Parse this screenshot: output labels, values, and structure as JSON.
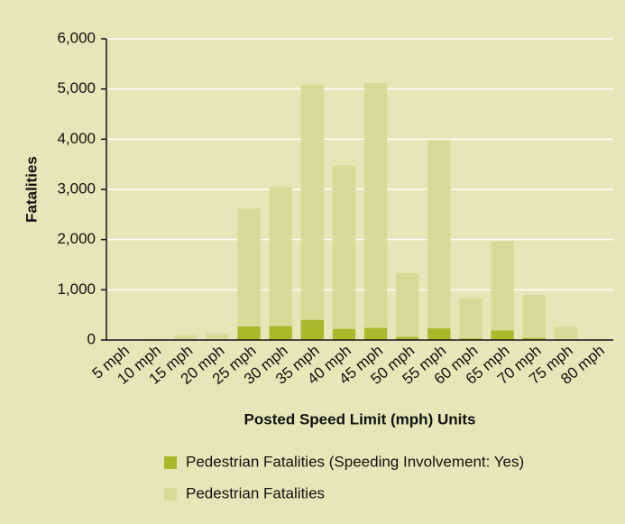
{
  "chart_data": {
    "type": "bar",
    "x_label": "Posted Speed Limit (mph) Units",
    "y_label": "Fatalities",
    "categories": [
      "5 mph",
      "10 mph",
      "15 mph",
      "20 mph",
      "25 mph",
      "30 mph",
      "35 mph",
      "40 mph",
      "45 mph",
      "50 mph",
      "55 mph",
      "60 mph",
      "65 mph",
      "70 mph",
      "75 mph",
      "80 mph"
    ],
    "series": [
      {
        "name": "Pedestrian Fatalities",
        "color": "#d5dc98",
        "values": [
          0,
          20,
          100,
          130,
          2620,
          3050,
          5080,
          3480,
          5120,
          1330,
          3980,
          830,
          1970,
          900,
          260,
          20
        ]
      },
      {
        "name": "Pedestrian Fatalities (Speeding Involvement: Yes)",
        "color": "#a8b92a",
        "values": [
          0,
          0,
          5,
          10,
          270,
          280,
          400,
          220,
          240,
          60,
          230,
          30,
          190,
          40,
          10,
          0
        ]
      }
    ],
    "ylim": [
      0,
      6000
    ],
    "yticks": [
      0,
      {
        "value": 1000,
        "label": "1,000"
      },
      {
        "value": 2000,
        "label": "2,000"
      },
      {
        "value": 3000,
        "label": "3,000"
      },
      {
        "value": 4000,
        "label": "4,000"
      },
      {
        "value": 5000,
        "label": "5,000"
      },
      {
        "value": 6000,
        "label": "6,000"
      }
    ],
    "grid": true
  }
}
